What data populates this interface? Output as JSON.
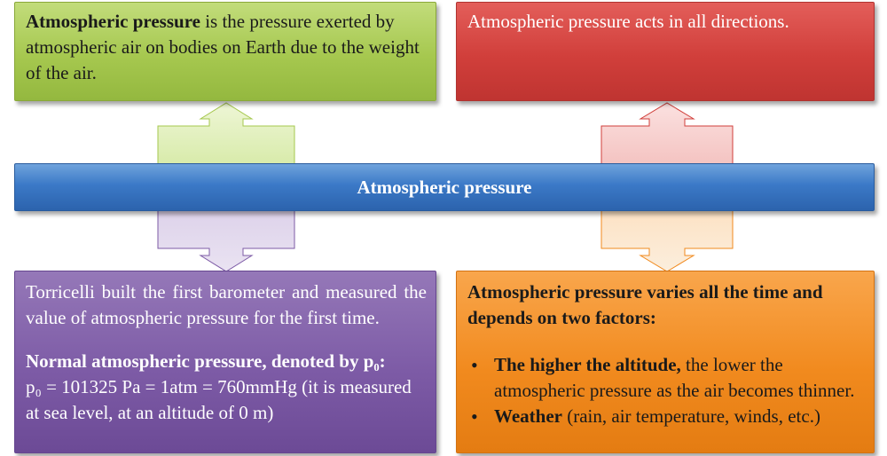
{
  "top_left": {
    "bold": "Atmospheric pressure",
    "text": " is the pressure exerted by atmospheric air on bodies on Earth due to the weight of the air."
  },
  "top_right": {
    "text": "Atmospheric pressure acts in all directions."
  },
  "center": {
    "title": "Atmospheric pressure"
  },
  "bottom_left": {
    "p1": "Torricelli built the first barometer and measured the value of atmospheric pressure for the first time.",
    "bold": "Normal atmospheric pressure, denoted by p₀:",
    "text": "p₀ = 101325 Pa = 1atm = 760mmHg (it is measured at sea level, at an altitude of 0 m)"
  },
  "bottom_right": {
    "intro": "Atmospheric pressure varies all the time and depends on two factors:",
    "bullets": [
      {
        "bold": "The higher the altitude,",
        "text": " the lower the atmospheric pressure as the air becomes thinner."
      },
      {
        "bold": "Weather",
        "text": " (rain, air temperature, winds, etc.)"
      }
    ]
  },
  "colors": {
    "green": "#a6c84f",
    "red": "#d13f3b",
    "blue": "#3b79c7",
    "purple": "#7d5ba6",
    "orange": "#f18a1e"
  }
}
